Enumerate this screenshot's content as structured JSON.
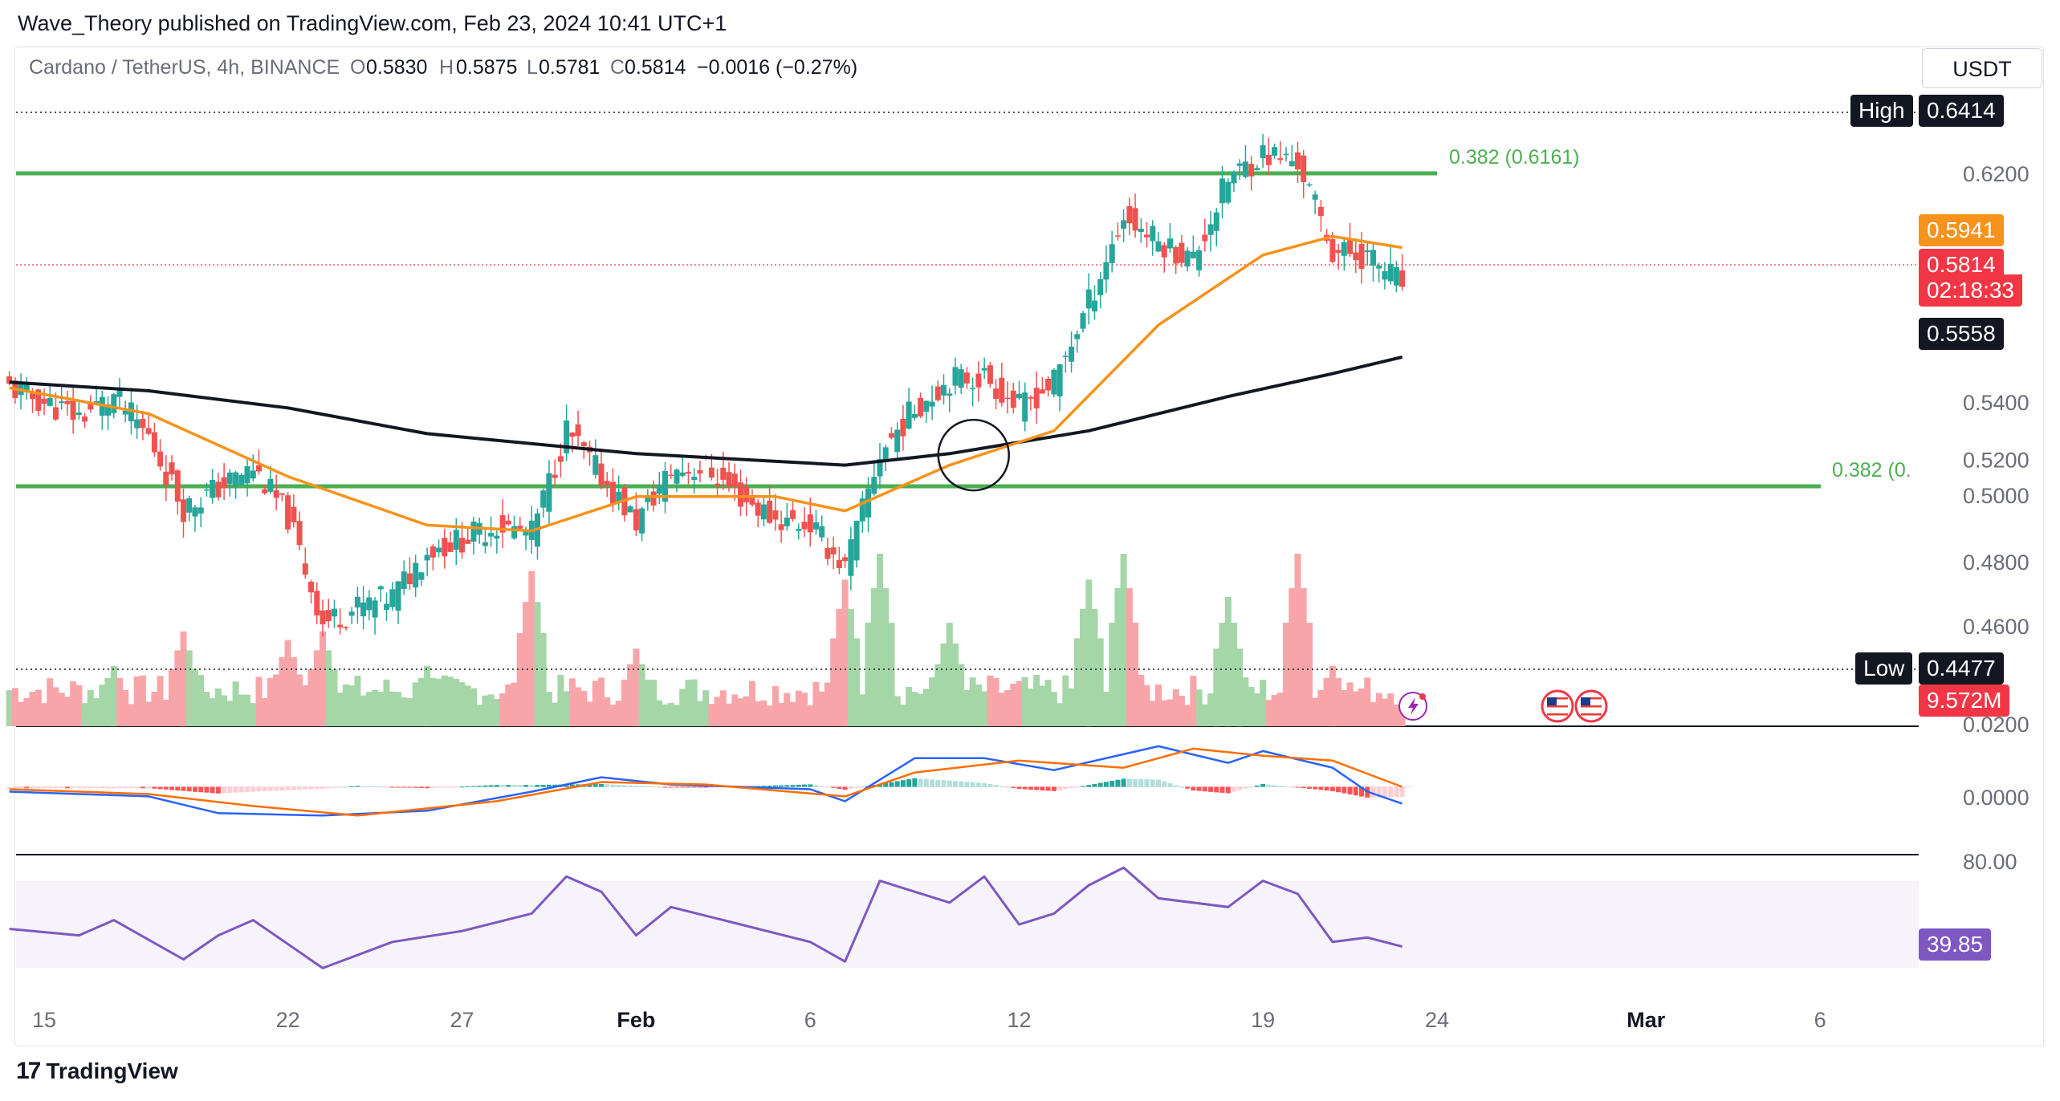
{
  "publisher": "Wave_Theory published on TradingView.com, Feb 23, 2024 10:41 UTC+1",
  "header": {
    "symbol": "Cardano / TetherUS, 4h, BINANCE",
    "open_label": "O",
    "open": "0.5830",
    "high_label": "H",
    "high": "0.5875",
    "low_label": "L",
    "low": "0.5781",
    "close_label": "C",
    "close": "0.5814",
    "change": "−0.0016 (−0.27%)"
  },
  "currency": "USDT",
  "footer": {
    "brand": "TradingView"
  },
  "colors": {
    "up": "#26a69a",
    "down": "#ef5350",
    "ema_fast": "#f7931a",
    "ema_slow": "#131722",
    "fib": "#4caf50",
    "macd": "#2962ff",
    "signal": "#ff6d00",
    "rsi": "#7e57c2",
    "vol_up": "#a5d6a7",
    "vol_down": "#f8a5a9",
    "last_price": "#f23645"
  },
  "markers": [
    "lightning-icon",
    "us-flag-icon",
    "us-flag-icon"
  ],
  "chart_data": [
    {
      "type": "candlestick",
      "pair": "ADA/USDT",
      "interval": "4h",
      "ylim": [
        0.4477,
        0.6414
      ],
      "y_ticks": [
        "0.6200",
        "0.5400",
        "0.5200",
        "0.5000",
        "0.4800",
        "0.4600"
      ],
      "x_ticks": [
        "15",
        "22",
        "27",
        "Feb",
        "6",
        "12",
        "19",
        "24",
        "Mar",
        "6"
      ],
      "x_tick_dates": [
        "2024-01-15",
        "2024-01-22",
        "2024-01-27",
        "2024-02-01",
        "2024-02-06",
        "2024-02-12",
        "2024-02-19",
        "2024-02-24",
        "2024-03-01",
        "2024-03-06"
      ],
      "close_path": [
        [
          "2024-01-14",
          0.545
        ],
        [
          "2024-01-16",
          0.535
        ],
        [
          "2024-01-17",
          0.542
        ],
        [
          "2024-01-18",
          0.528
        ],
        [
          "2024-01-19",
          0.503
        ],
        [
          "2024-01-20",
          0.51
        ],
        [
          "2024-01-21",
          0.517
        ],
        [
          "2024-01-22",
          0.5
        ],
        [
          "2024-01-23",
          0.463
        ],
        [
          "2024-01-24",
          0.468
        ],
        [
          "2024-01-25",
          0.472
        ],
        [
          "2024-01-26",
          0.488
        ],
        [
          "2024-01-27",
          0.492
        ],
        [
          "2024-01-28",
          0.497
        ],
        [
          "2024-01-29",
          0.494
        ],
        [
          "2024-01-30",
          0.53
        ],
        [
          "2024-01-31",
          0.514
        ],
        [
          "2024-02-01",
          0.498
        ],
        [
          "2024-02-02",
          0.516
        ],
        [
          "2024-02-03",
          0.517
        ],
        [
          "2024-02-04",
          0.507
        ],
        [
          "2024-02-05",
          0.499
        ],
        [
          "2024-02-06",
          0.497
        ],
        [
          "2024-02-07",
          0.482
        ],
        [
          "2024-02-08",
          0.522
        ],
        [
          "2024-02-09",
          0.538
        ],
        [
          "2024-02-10",
          0.548
        ],
        [
          "2024-02-11",
          0.549
        ],
        [
          "2024-02-12",
          0.538
        ],
        [
          "2024-02-13",
          0.547
        ],
        [
          "2024-02-14",
          0.575
        ],
        [
          "2024-02-15",
          0.605
        ],
        [
          "2024-02-16",
          0.596
        ],
        [
          "2024-02-17",
          0.59
        ],
        [
          "2024-02-18",
          0.618
        ],
        [
          "2024-02-19",
          0.627
        ],
        [
          "2024-02-20",
          0.624
        ],
        [
          "2024-02-21",
          0.593
        ],
        [
          "2024-02-22",
          0.591
        ],
        [
          "2024-02-23",
          0.5814
        ]
      ],
      "ema_50": {
        "last": "0.5941",
        "path": [
          [
            "2024-01-14",
            0.545
          ],
          [
            "2024-01-18",
            0.536
          ],
          [
            "2024-01-22",
            0.514
          ],
          [
            "2024-01-26",
            0.497
          ],
          [
            "2024-01-29",
            0.495
          ],
          [
            "2024-02-01",
            0.507
          ],
          [
            "2024-02-05",
            0.507
          ],
          [
            "2024-02-07",
            0.502
          ],
          [
            "2024-02-10",
            0.518
          ],
          [
            "2024-02-13",
            0.53
          ],
          [
            "2024-02-16",
            0.567
          ],
          [
            "2024-02-19",
            0.5915
          ],
          [
            "2024-02-21",
            0.598
          ],
          [
            "2024-02-23",
            0.5941
          ]
        ]
      },
      "ema_200": {
        "last": "0.5558",
        "path": [
          [
            "2024-01-14",
            0.547
          ],
          [
            "2024-01-18",
            0.544
          ],
          [
            "2024-01-22",
            0.538
          ],
          [
            "2024-01-26",
            0.529
          ],
          [
            "2024-02-01",
            0.522
          ],
          [
            "2024-02-07",
            0.518
          ],
          [
            "2024-02-10",
            0.522
          ],
          [
            "2024-02-14",
            0.53
          ],
          [
            "2024-02-18",
            0.542
          ],
          [
            "2024-02-21",
            0.55
          ],
          [
            "2024-02-23",
            0.5558
          ]
        ]
      },
      "fib_levels": [
        {
          "label": "0.382 (0.6161)",
          "value": 0.6161,
          "from": "2024-01-14",
          "to": "2024-02-24"
        },
        {
          "label": "0.382 (0.",
          "value": 0.5045,
          "from": "2024-01-14",
          "to": "2024-03-05"
        }
      ],
      "last_price": "0.5814",
      "countdown": "02:18:33",
      "high": {
        "label": "High",
        "value": "0.6414",
        "price": 0.6414
      },
      "low": {
        "label": "Low",
        "value": "0.4477",
        "price": 0.4477
      },
      "annotation_circle_date": "2024-02-10",
      "annotation_circle_price": 0.5215
    },
    {
      "type": "bar",
      "name": "Volume",
      "last_value": "9.572M",
      "spikes": [
        [
          "2024-01-17",
          0.35
        ],
        [
          "2024-01-19",
          0.55
        ],
        [
          "2024-01-22",
          0.5
        ],
        [
          "2024-01-23",
          0.55
        ],
        [
          "2024-01-26",
          0.35
        ],
        [
          "2024-01-29",
          0.9
        ],
        [
          "2024-02-01",
          0.45
        ],
        [
          "2024-02-07",
          0.85
        ],
        [
          "2024-02-08",
          1.0
        ],
        [
          "2024-02-10",
          0.6
        ],
        [
          "2024-02-14",
          0.85
        ],
        [
          "2024-02-15",
          1.0
        ],
        [
          "2024-02-18",
          0.75
        ],
        [
          "2024-02-20",
          1.0
        ],
        [
          "2024-02-21",
          0.35
        ]
      ]
    },
    {
      "type": "line",
      "name": "MACD",
      "y_ticks": [
        "0.0200",
        "0.0000"
      ],
      "ylim": [
        -0.025,
        0.022
      ],
      "series": [
        {
          "name": "MACD",
          "path": [
            [
              "2024-01-14",
              -0.002
            ],
            [
              "2024-01-18",
              -0.004
            ],
            [
              "2024-01-20",
              -0.011
            ],
            [
              "2024-01-23",
              -0.012
            ],
            [
              "2024-01-26",
              -0.01
            ],
            [
              "2024-01-29",
              -0.002
            ],
            [
              "2024-01-31",
              0.004
            ],
            [
              "2024-02-02",
              0.001
            ],
            [
              "2024-02-06",
              -0.001
            ],
            [
              "2024-02-07",
              -0.006
            ],
            [
              "2024-02-09",
              0.012
            ],
            [
              "2024-02-11",
              0.012
            ],
            [
              "2024-02-13",
              0.007
            ],
            [
              "2024-02-16",
              0.017
            ],
            [
              "2024-02-18",
              0.01
            ],
            [
              "2024-02-19",
              0.015
            ],
            [
              "2024-02-21",
              0.008
            ],
            [
              "2024-02-22",
              -0.002
            ],
            [
              "2024-02-23",
              -0.007
            ]
          ]
        },
        {
          "name": "Signal",
          "path": [
            [
              "2024-01-14",
              -0.001
            ],
            [
              "2024-01-18",
              -0.003
            ],
            [
              "2024-01-21",
              -0.008
            ],
            [
              "2024-01-24",
              -0.012
            ],
            [
              "2024-01-28",
              -0.006
            ],
            [
              "2024-01-31",
              0.002
            ],
            [
              "2024-02-03",
              0.001
            ],
            [
              "2024-02-07",
              -0.004
            ],
            [
              "2024-02-09",
              0.006
            ],
            [
              "2024-02-12",
              0.011
            ],
            [
              "2024-02-15",
              0.008
            ],
            [
              "2024-02-17",
              0.016
            ],
            [
              "2024-02-19",
              0.013
            ],
            [
              "2024-02-21",
              0.011
            ],
            [
              "2024-02-23",
              0.0
            ]
          ]
        }
      ]
    },
    {
      "type": "line",
      "name": "RSI",
      "y_ticks": [
        "80.00"
      ],
      "ylim": [
        25,
        82
      ],
      "band": [
        30,
        70
      ],
      "last_value": "39.85",
      "path": [
        [
          "2024-01-14",
          48
        ],
        [
          "2024-01-16",
          45
        ],
        [
          "2024-01-17",
          52
        ],
        [
          "2024-01-19",
          34
        ],
        [
          "2024-01-20",
          45
        ],
        [
          "2024-01-21",
          52
        ],
        [
          "2024-01-23",
          30
        ],
        [
          "2024-01-25",
          42
        ],
        [
          "2024-01-27",
          47
        ],
        [
          "2024-01-29",
          55
        ],
        [
          "2024-01-30",
          72
        ],
        [
          "2024-01-31",
          65
        ],
        [
          "2024-02-01",
          45
        ],
        [
          "2024-02-02",
          58
        ],
        [
          "2024-02-04",
          50
        ],
        [
          "2024-02-05",
          46
        ],
        [
          "2024-02-06",
          42
        ],
        [
          "2024-02-07",
          33
        ],
        [
          "2024-02-08",
          70
        ],
        [
          "2024-02-10",
          60
        ],
        [
          "2024-02-11",
          72
        ],
        [
          "2024-02-12",
          50
        ],
        [
          "2024-02-13",
          55
        ],
        [
          "2024-02-14",
          68
        ],
        [
          "2024-02-15",
          76
        ],
        [
          "2024-02-16",
          62
        ],
        [
          "2024-02-18",
          58
        ],
        [
          "2024-02-19",
          70
        ],
        [
          "2024-02-20",
          64
        ],
        [
          "2024-02-21",
          42
        ],
        [
          "2024-02-22",
          44
        ],
        [
          "2024-02-23",
          39.85
        ]
      ]
    }
  ]
}
